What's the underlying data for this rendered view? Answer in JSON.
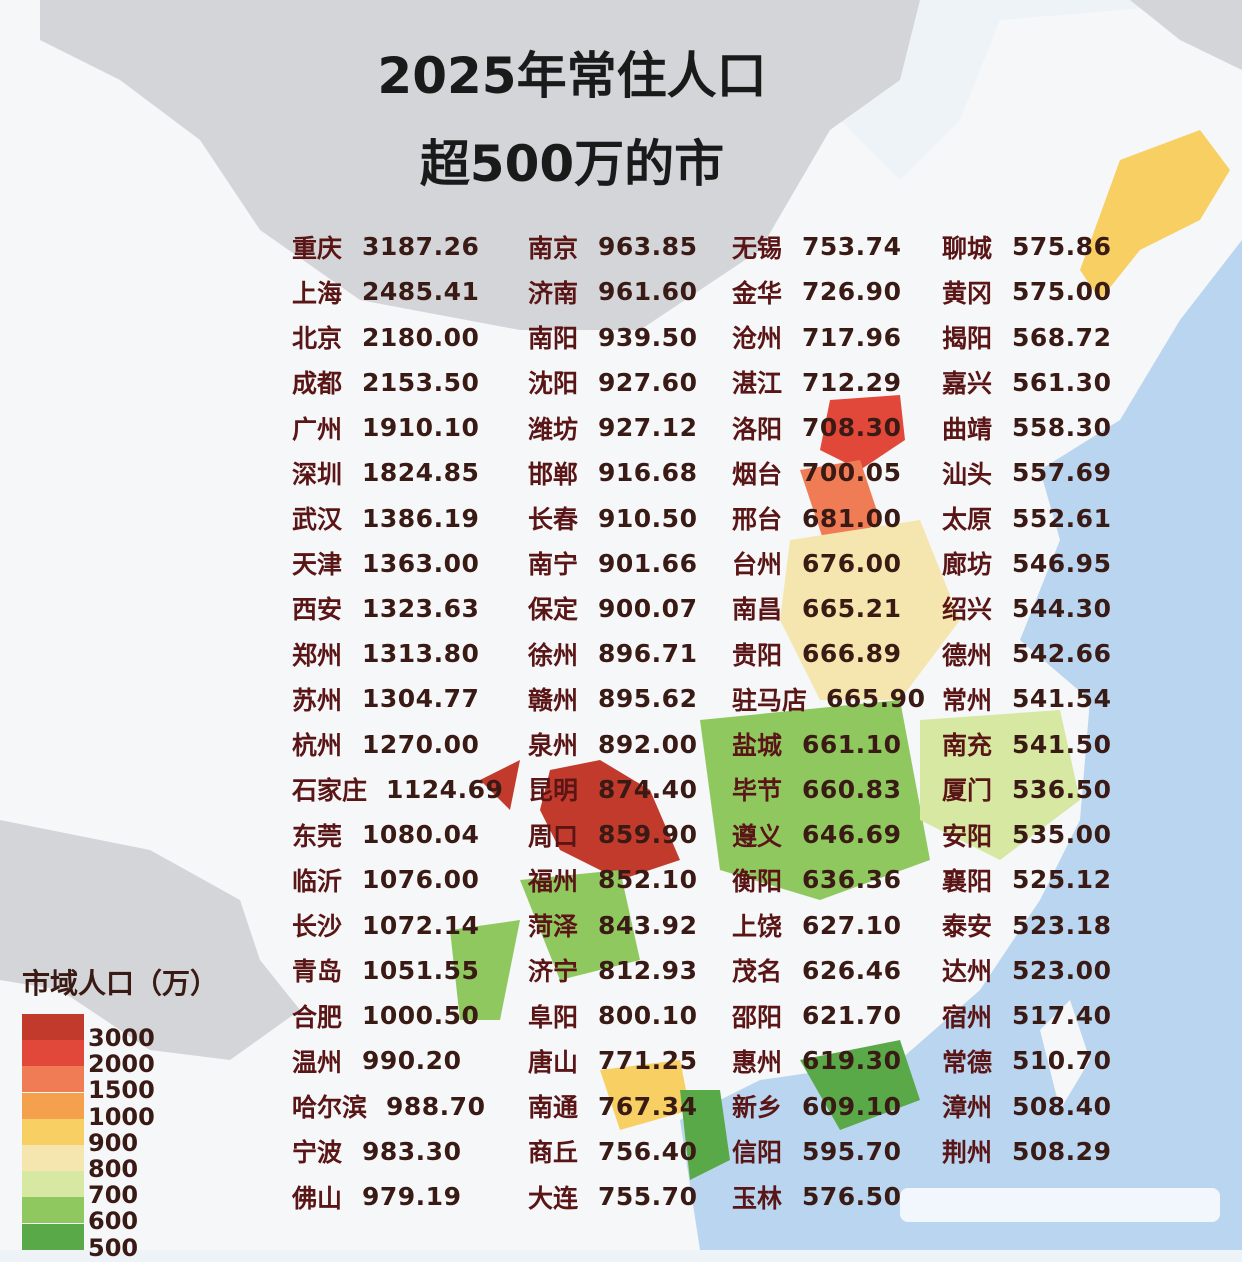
{
  "header": {
    "title_line1": "2025年常住人口",
    "title_line2": "超500万的市"
  },
  "columns": [
    [
      {
        "name": "重庆",
        "value": "3187.26"
      },
      {
        "name": "上海",
        "value": "2485.41"
      },
      {
        "name": "北京",
        "value": "2180.00"
      },
      {
        "name": "成都",
        "value": "2153.50"
      },
      {
        "name": "广州",
        "value": "1910.10"
      },
      {
        "name": "深圳",
        "value": "1824.85"
      },
      {
        "name": "武汉",
        "value": "1386.19"
      },
      {
        "name": "天津",
        "value": "1363.00"
      },
      {
        "name": "西安",
        "value": "1323.63"
      },
      {
        "name": "郑州",
        "value": "1313.80"
      },
      {
        "name": "苏州",
        "value": "1304.77"
      },
      {
        "name": "杭州",
        "value": "1270.00"
      },
      {
        "name": "石家庄",
        "value": "1124.69"
      },
      {
        "name": "东莞",
        "value": "1080.04"
      },
      {
        "name": "临沂",
        "value": "1076.00"
      },
      {
        "name": "长沙",
        "value": "1072.14"
      },
      {
        "name": "青岛",
        "value": "1051.55"
      },
      {
        "name": "合肥",
        "value": "1000.50"
      },
      {
        "name": "温州",
        "value": "990.20"
      },
      {
        "name": "哈尔滨",
        "value": "988.70"
      },
      {
        "name": "宁波",
        "value": "983.30"
      },
      {
        "name": "佛山",
        "value": "979.19"
      }
    ],
    [
      {
        "name": "南京",
        "value": "963.85"
      },
      {
        "name": "济南",
        "value": "961.60"
      },
      {
        "name": "南阳",
        "value": "939.50"
      },
      {
        "name": "沈阳",
        "value": "927.60"
      },
      {
        "name": "潍坊",
        "value": "927.12"
      },
      {
        "name": "邯郸",
        "value": "916.68"
      },
      {
        "name": "长春",
        "value": "910.50"
      },
      {
        "name": "南宁",
        "value": "901.66"
      },
      {
        "name": "保定",
        "value": "900.07"
      },
      {
        "name": "徐州",
        "value": "896.71"
      },
      {
        "name": "赣州",
        "value": "895.62"
      },
      {
        "name": "泉州",
        "value": "892.00"
      },
      {
        "name": "昆明",
        "value": "874.40"
      },
      {
        "name": "周口",
        "value": "859.90"
      },
      {
        "name": "福州",
        "value": "852.10"
      },
      {
        "name": "菏泽",
        "value": "843.92"
      },
      {
        "name": "济宁",
        "value": "812.93"
      },
      {
        "name": "阜阳",
        "value": "800.10"
      },
      {
        "name": "唐山",
        "value": "771.25"
      },
      {
        "name": "南通",
        "value": "767.34"
      },
      {
        "name": "商丘",
        "value": "756.40"
      },
      {
        "name": "大连",
        "value": "755.70"
      }
    ],
    [
      {
        "name": "无锡",
        "value": "753.74"
      },
      {
        "name": "金华",
        "value": "726.90"
      },
      {
        "name": "沧州",
        "value": "717.96"
      },
      {
        "name": "湛江",
        "value": "712.29"
      },
      {
        "name": "洛阳",
        "value": "708.30"
      },
      {
        "name": "烟台",
        "value": "700.05"
      },
      {
        "name": "邢台",
        "value": "681.00"
      },
      {
        "name": "台州",
        "value": "676.00"
      },
      {
        "name": "南昌",
        "value": "665.21"
      },
      {
        "name": "贵阳",
        "value": "666.89"
      },
      {
        "name": "驻马店",
        "value": "665.90"
      },
      {
        "name": "盐城",
        "value": "661.10"
      },
      {
        "name": "毕节",
        "value": "660.83"
      },
      {
        "name": "遵义",
        "value": "646.69"
      },
      {
        "name": "衡阳",
        "value": "636.36"
      },
      {
        "name": "上饶",
        "value": "627.10"
      },
      {
        "name": "茂名",
        "value": "626.46"
      },
      {
        "name": "邵阳",
        "value": "621.70"
      },
      {
        "name": "惠州",
        "value": "619.30"
      },
      {
        "name": "新乡",
        "value": "609.10"
      },
      {
        "name": "信阳",
        "value": "595.70"
      },
      {
        "name": "玉林",
        "value": "576.50"
      }
    ],
    [
      {
        "name": "聊城",
        "value": "575.86"
      },
      {
        "name": "黄冈",
        "value": "575.00"
      },
      {
        "name": "揭阳",
        "value": "568.72"
      },
      {
        "name": "嘉兴",
        "value": "561.30"
      },
      {
        "name": "曲靖",
        "value": "558.30"
      },
      {
        "name": "汕头",
        "value": "557.69"
      },
      {
        "name": "太原",
        "value": "552.61"
      },
      {
        "name": "廊坊",
        "value": "546.95"
      },
      {
        "name": "绍兴",
        "value": "544.30"
      },
      {
        "name": "德州",
        "value": "542.66"
      },
      {
        "name": "常州",
        "value": "541.54"
      },
      {
        "name": "南充",
        "value": "541.50"
      },
      {
        "name": "厦门",
        "value": "536.50"
      },
      {
        "name": "安阳",
        "value": "535.00"
      },
      {
        "name": "襄阳",
        "value": "525.12"
      },
      {
        "name": "泰安",
        "value": "523.18"
      },
      {
        "name": "达州",
        "value": "523.00"
      },
      {
        "name": "宿州",
        "value": "517.40"
      },
      {
        "name": "常德",
        "value": "510.70"
      },
      {
        "name": "漳州",
        "value": "508.40"
      },
      {
        "name": "荆州",
        "value": "508.29"
      }
    ]
  ],
  "legend": {
    "title": "市域人口（万）",
    "items": [
      {
        "label": 3000,
        "color": "#c13a2c"
      },
      {
        "label": 2000,
        "color": "#e2483a"
      },
      {
        "label": 1500,
        "color": "#f07c55"
      },
      {
        "label": 1000,
        "color": "#f4a04c"
      },
      {
        "label": 900,
        "color": "#f8cf62"
      },
      {
        "label": 800,
        "color": "#f4e6ae"
      },
      {
        "label": 700,
        "color": "#d6e8a2"
      },
      {
        "label": 600,
        "color": "#90c860"
      },
      {
        "label": 500,
        "color": "#5aa948"
      }
    ]
  }
}
